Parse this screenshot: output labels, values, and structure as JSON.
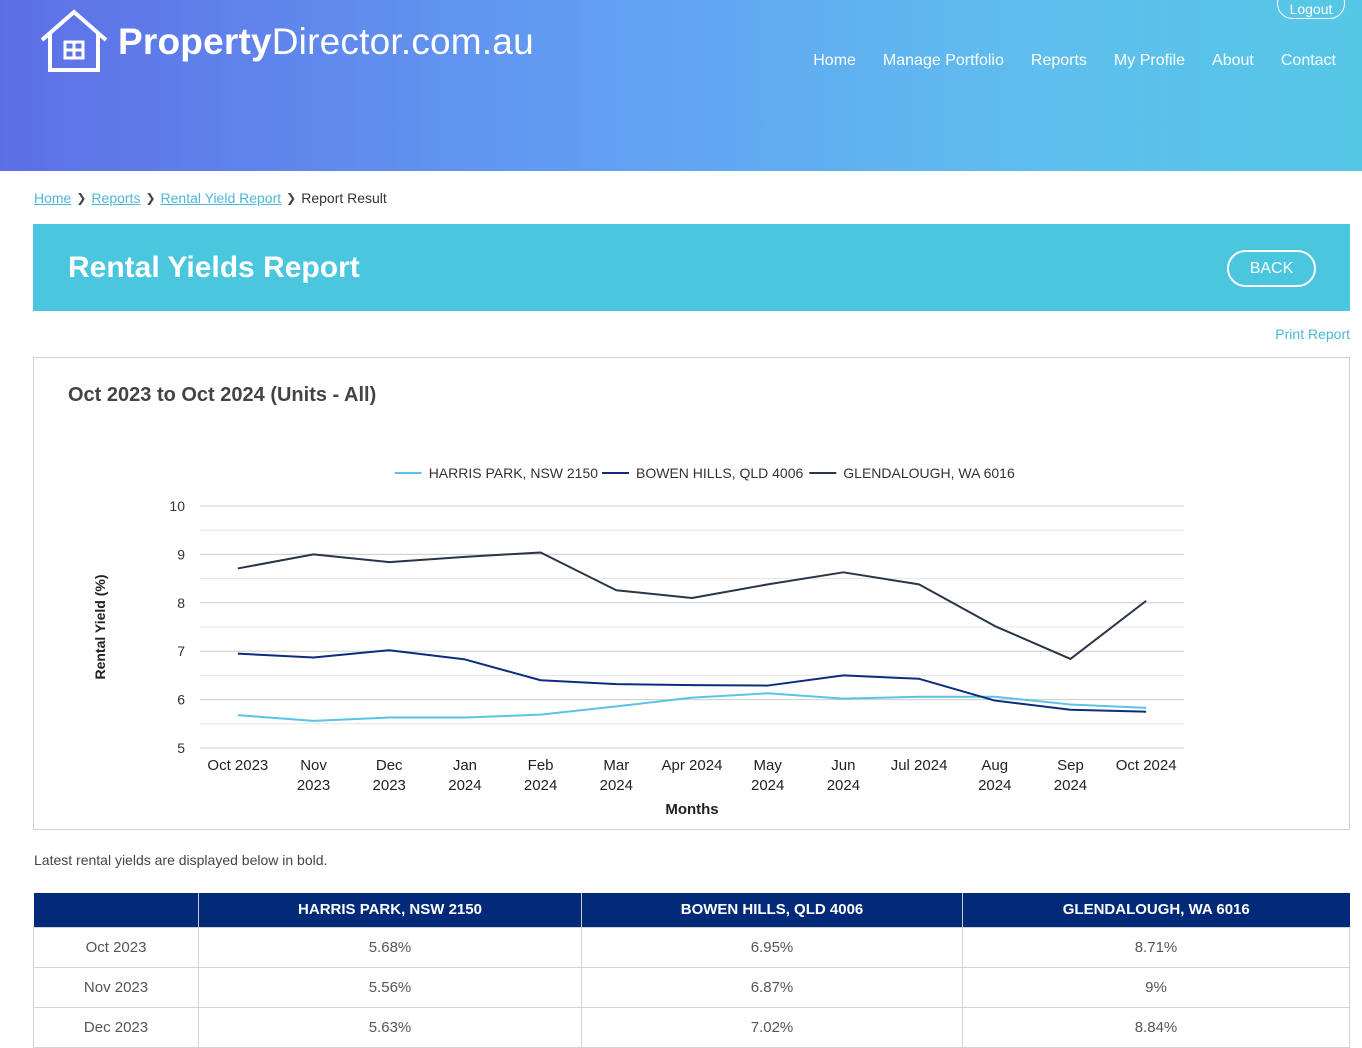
{
  "header": {
    "logo_bold": "Property",
    "logo_rest": "Director.com.au",
    "logout_label": "Logout",
    "nav": [
      "Home",
      "Manage Portfolio",
      "Reports",
      "My Profile",
      "About",
      "Contact"
    ]
  },
  "breadcrumb": {
    "items": [
      "Home",
      "Reports",
      "Rental Yield Report"
    ],
    "current": "Report Result"
  },
  "page": {
    "title": "Rental Yields Report",
    "back_label": "BACK",
    "print_label": "Print Report",
    "note": "Latest rental yields are displayed below in bold."
  },
  "chart_data": {
    "type": "line",
    "title": "Oct 2023 to Oct 2024 (Units - All)",
    "xlabel": "Months",
    "ylabel": "Rental Yield (%)",
    "ylim": [
      5,
      10
    ],
    "yticks": [
      5,
      6,
      7,
      8,
      9,
      10
    ],
    "grid": true,
    "legend_position": "top",
    "categories": [
      "Oct 2023",
      "Nov 2023",
      "Dec 2023",
      "Jan 2024",
      "Feb 2024",
      "Mar 2024",
      "Apr 2024",
      "May 2024",
      "Jun 2024",
      "Jul 2024",
      "Aug 2024",
      "Sep 2024",
      "Oct 2024"
    ],
    "series": [
      {
        "name": "HARRIS PARK, NSW 2150",
        "color": "#5bc3e6",
        "values": [
          5.68,
          5.56,
          5.63,
          5.63,
          5.69,
          5.86,
          6.04,
          6.13,
          6.02,
          6.06,
          6.06,
          5.9,
          5.83
        ]
      },
      {
        "name": "BOWEN HILLS, QLD 4006",
        "color": "#0d2c7d",
        "values": [
          6.95,
          6.87,
          7.02,
          6.83,
          6.4,
          6.32,
          6.3,
          6.29,
          6.5,
          6.43,
          5.98,
          5.79,
          5.75
        ]
      },
      {
        "name": "GLENDALOUGH, WA 6016",
        "color": "#2a3547",
        "values": [
          8.71,
          9.0,
          8.84,
          8.95,
          9.04,
          8.26,
          8.1,
          8.38,
          8.63,
          8.38,
          7.52,
          6.84,
          8.04
        ]
      }
    ]
  },
  "table": {
    "headers": [
      "",
      "HARRIS PARK, NSW 2150",
      "BOWEN HILLS, QLD 4006",
      "GLENDALOUGH, WA 6016"
    ],
    "rows": [
      [
        "Oct 2023",
        "5.68%",
        "6.95%",
        "8.71%"
      ],
      [
        "Nov 2023",
        "5.56%",
        "6.87%",
        "9%"
      ],
      [
        "Dec 2023",
        "5.63%",
        "7.02%",
        "8.84%"
      ]
    ]
  }
}
